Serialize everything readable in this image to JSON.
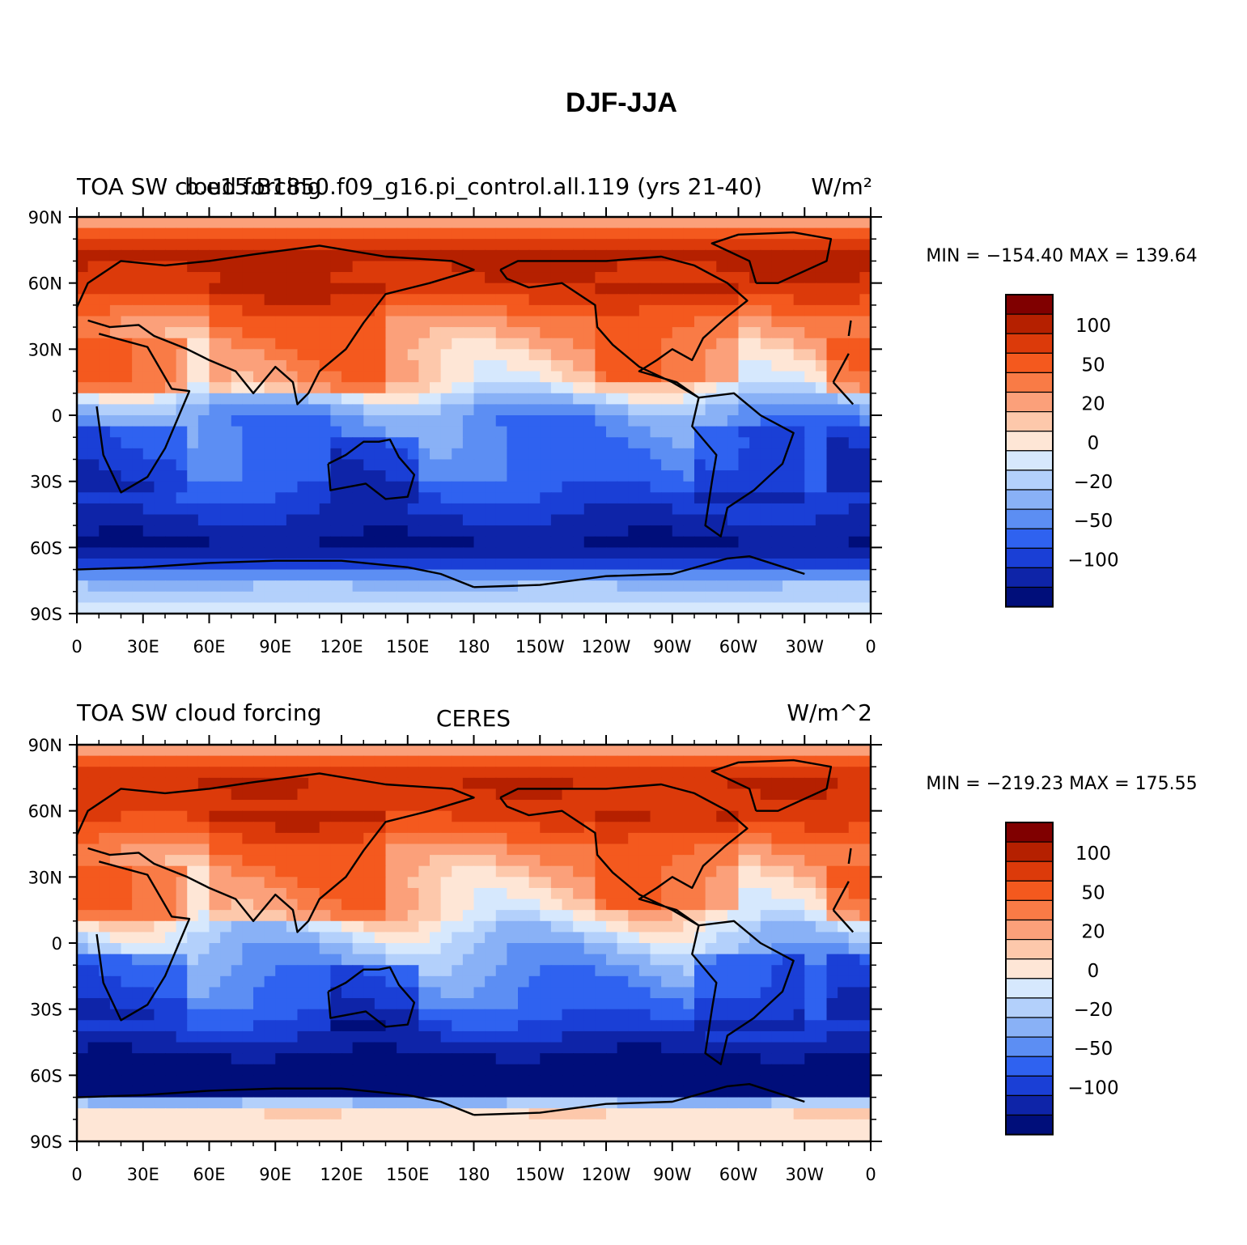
{
  "title": "DJF-JJA",
  "panels": [
    {
      "left_title": "TOA SW cloud forcing",
      "center_title": "b.e15.B1850.f09_g16.pi_control.all.119 (yrs 21-40)",
      "right_title": "W/m²",
      "minmax": "MIN = −154.40  MAX = 139.64"
    },
    {
      "left_title": "TOA SW cloud forcing",
      "center_title": "CERES",
      "right_title": "W/m^2",
      "minmax": "MIN = −219.23  MAX = 175.55"
    }
  ],
  "lat_labels": [
    "90N",
    "60N",
    "30N",
    "0",
    "30S",
    "60S",
    "90S"
  ],
  "lon_labels": [
    "0",
    "30E",
    "60E",
    "90E",
    "120E",
    "150E",
    "180",
    "150W",
    "120W",
    "90W",
    "60W",
    "30W",
    "0"
  ],
  "colorbar": {
    "labels": [
      "100",
      "50",
      "20",
      "0",
      "−20",
      "−50",
      "−100"
    ],
    "colors": [
      "#800000",
      "#b52000",
      "#dc3a0a",
      "#f4591e",
      "#f97b46",
      "#fba07a",
      "#fdc8ab",
      "#fee6d6",
      "#d6e8fd",
      "#b3d0fb",
      "#89b1f6",
      "#5c8ef3",
      "#2f62f0",
      "#1a3fd6",
      "#0e24a8",
      "#000e7a"
    ]
  },
  "chart_data": [
    {
      "type": "heatmap",
      "title": "b.e15.B1850.f09_g16.pi_control.all.119 (yrs 21-40)",
      "variable": "TOA SW cloud forcing",
      "units": "W/m²",
      "season_difference": "DJF-JJA",
      "min": -154.4,
      "max": 139.64,
      "contour_levels": [
        -100,
        -50,
        -20,
        0,
        20,
        50,
        100
      ],
      "lat_range": [
        -90,
        90
      ],
      "lon_range": [
        0,
        360
      ],
      "zonal_pattern_by_latitude": {
        "90": 10,
        "75": 110,
        "60": 95,
        "45": 40,
        "30": 20,
        "15": 10,
        "0": -40,
        "-15": -50,
        "-30": -60,
        "-45": -100,
        "-60": -140,
        "-75": -25,
        "-90": -5
      }
    },
    {
      "type": "heatmap",
      "title": "CERES",
      "variable": "TOA SW cloud forcing",
      "units": "W/m^2",
      "season_difference": "DJF-JJA",
      "min": -219.23,
      "max": 175.55,
      "contour_levels": [
        -100,
        -50,
        -20,
        0,
        20,
        50,
        100
      ],
      "lat_range": [
        -90,
        90
      ],
      "lon_range": [
        0,
        360
      ],
      "zonal_pattern_by_latitude": {
        "90": 5,
        "75": 100,
        "60": 90,
        "45": 40,
        "30": 20,
        "15": 10,
        "0": -20,
        "-15": -40,
        "-30": -60,
        "-45": -110,
        "-60": -170,
        "-75": 8,
        "-90": 5
      }
    }
  ]
}
